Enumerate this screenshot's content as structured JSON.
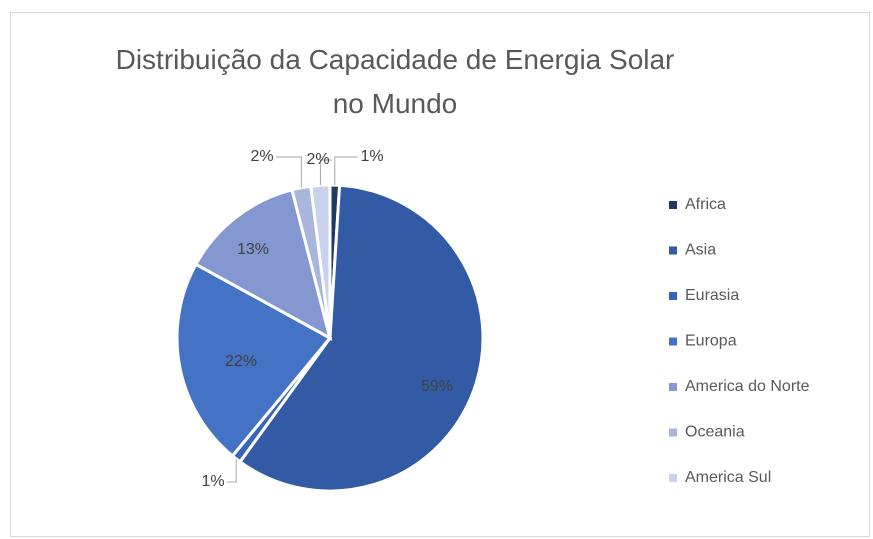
{
  "chart_data": {
    "type": "pie",
    "title": "Distribuição da Capacidade de Energia Solar no Mundo",
    "categories": [
      "Africa",
      "Asia",
      "Eurasia",
      "Europa",
      "America do Norte",
      "Oceania",
      "America Sul"
    ],
    "values": [
      1,
      59,
      1,
      22,
      13,
      2,
      2
    ],
    "value_labels": [
      "1%",
      "59%",
      "1%",
      "22%",
      "13%",
      "2%",
      "2%"
    ],
    "colors": [
      "#203864",
      "#335aa5",
      "#3a64bb",
      "#4472c4",
      "#8497d0",
      "#a8b5dd",
      "#c9d1ec"
    ],
    "legend": "right"
  }
}
